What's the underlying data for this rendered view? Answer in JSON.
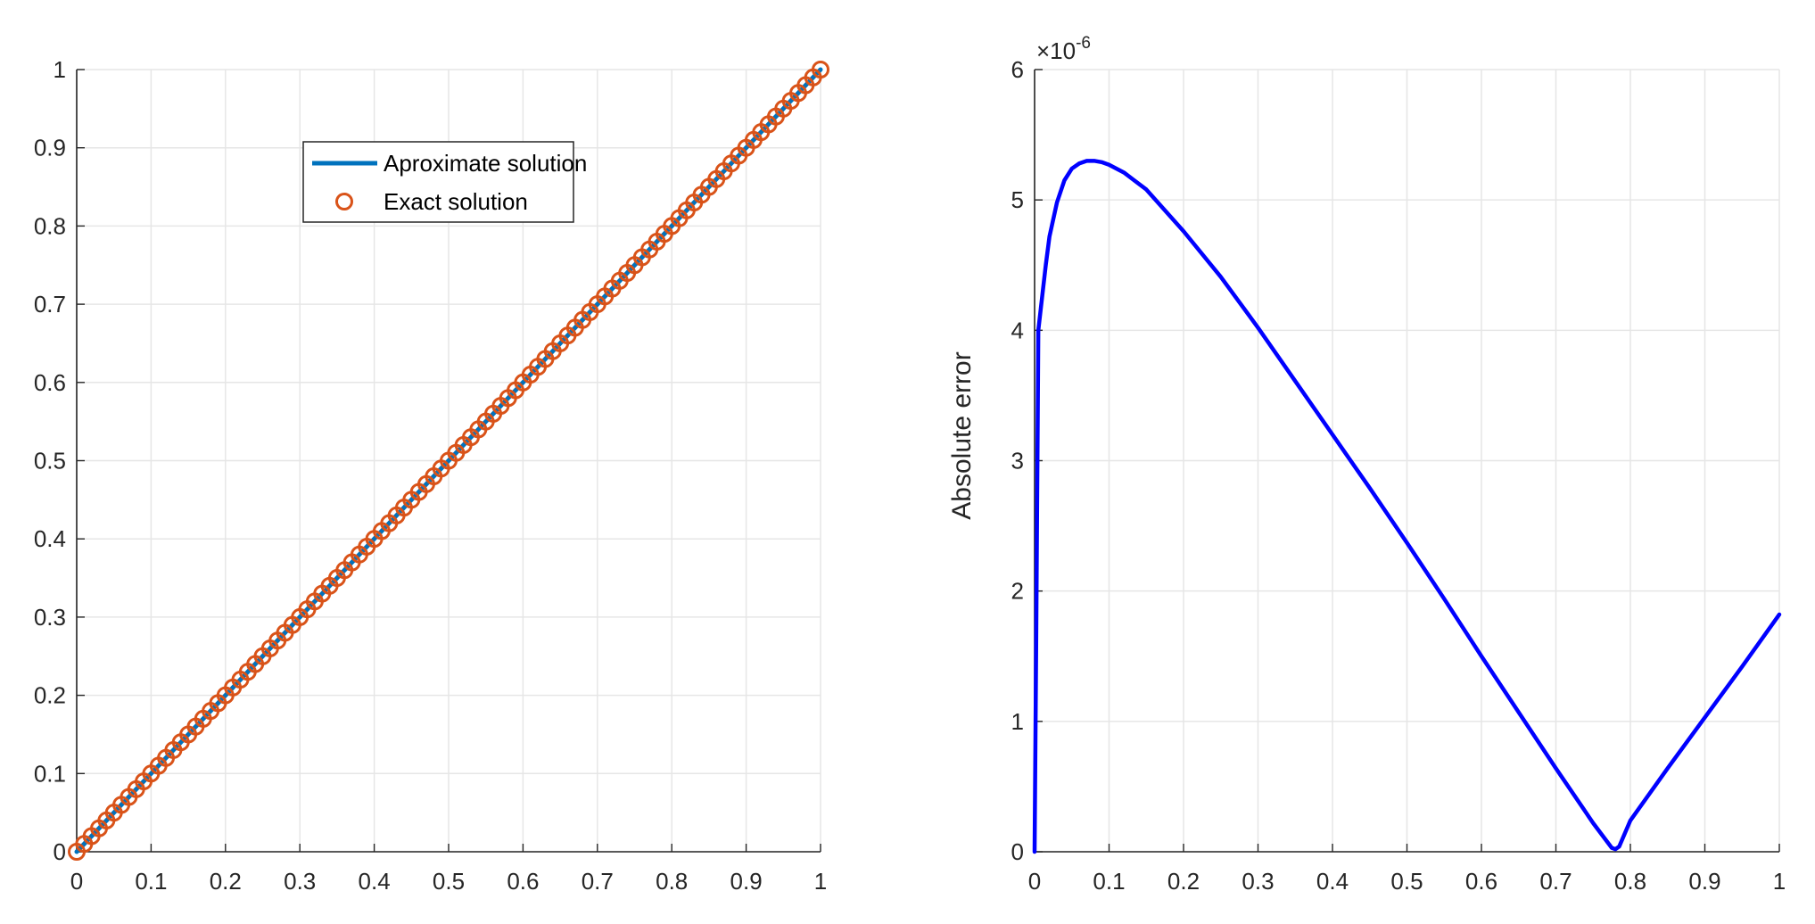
{
  "chart_data": [
    {
      "type": "line",
      "title": "",
      "xlabel": "",
      "ylabel": "",
      "xlim": [
        0,
        1
      ],
      "ylim": [
        0,
        1
      ],
      "grid": true,
      "legend_placement": "upper-center",
      "xticks": [
        "0",
        "0.1",
        "0.2",
        "0.3",
        "0.4",
        "0.5",
        "0.6",
        "0.7",
        "0.8",
        "0.9",
        "1"
      ],
      "yticks": [
        "0",
        "0.1",
        "0.2",
        "0.3",
        "0.4",
        "0.5",
        "0.6",
        "0.7",
        "0.8",
        "0.9",
        "1"
      ],
      "series": [
        {
          "name": "Aproximate solution",
          "style": "line",
          "color": "#0072BD",
          "x": [
            0,
            0.1,
            0.2,
            0.3,
            0.4,
            0.5,
            0.6,
            0.7,
            0.8,
            0.9,
            1
          ],
          "y": [
            0,
            0.1,
            0.2,
            0.3,
            0.4,
            0.5,
            0.6,
            0.7,
            0.8,
            0.9,
            1
          ]
        },
        {
          "name": "Exact solution",
          "style": "markers",
          "marker": "circle",
          "color": "#D95319",
          "x": [
            0,
            0.01,
            0.02,
            0.03,
            0.04,
            0.05,
            0.06,
            0.07,
            0.08,
            0.09,
            0.1,
            0.11,
            0.12,
            0.13,
            0.14,
            0.15,
            0.16,
            0.17,
            0.18,
            0.19,
            0.2,
            0.21,
            0.22,
            0.23,
            0.24,
            0.25,
            0.26,
            0.27,
            0.28,
            0.29,
            0.3,
            0.31,
            0.32,
            0.33,
            0.34,
            0.35,
            0.36,
            0.37,
            0.38,
            0.39,
            0.4,
            0.41,
            0.42,
            0.43,
            0.44,
            0.45,
            0.46,
            0.47,
            0.48,
            0.49,
            0.5,
            0.51,
            0.52,
            0.53,
            0.54,
            0.55,
            0.56,
            0.57,
            0.58,
            0.59,
            0.6,
            0.61,
            0.62,
            0.63,
            0.64,
            0.65,
            0.66,
            0.67,
            0.68,
            0.69,
            0.7,
            0.71,
            0.72,
            0.73,
            0.74,
            0.75,
            0.76,
            0.77,
            0.78,
            0.79,
            0.8,
            0.81,
            0.82,
            0.83,
            0.84,
            0.85,
            0.86,
            0.87,
            0.88,
            0.89,
            0.9,
            0.91,
            0.92,
            0.93,
            0.94,
            0.95,
            0.96,
            0.97,
            0.98,
            0.99,
            1
          ],
          "y": [
            0,
            0.01,
            0.02,
            0.03,
            0.04,
            0.05,
            0.06,
            0.07,
            0.08,
            0.09,
            0.1,
            0.11,
            0.12,
            0.13,
            0.14,
            0.15,
            0.16,
            0.17,
            0.18,
            0.19,
            0.2,
            0.21,
            0.22,
            0.23,
            0.24,
            0.25,
            0.26,
            0.27,
            0.28,
            0.29,
            0.3,
            0.31,
            0.32,
            0.33,
            0.34,
            0.35,
            0.36,
            0.37,
            0.38,
            0.39,
            0.4,
            0.41,
            0.42,
            0.43,
            0.44,
            0.45,
            0.46,
            0.47,
            0.48,
            0.49,
            0.5,
            0.51,
            0.52,
            0.53,
            0.54,
            0.55,
            0.56,
            0.57,
            0.58,
            0.59,
            0.6,
            0.61,
            0.62,
            0.63,
            0.64,
            0.65,
            0.66,
            0.67,
            0.68,
            0.69,
            0.7,
            0.71,
            0.72,
            0.73,
            0.74,
            0.75,
            0.76,
            0.77,
            0.78,
            0.79,
            0.8,
            0.81,
            0.82,
            0.83,
            0.84,
            0.85,
            0.86,
            0.87,
            0.88,
            0.89,
            0.9,
            0.91,
            0.92,
            0.93,
            0.94,
            0.95,
            0.96,
            0.97,
            0.98,
            0.99,
            1
          ]
        }
      ]
    },
    {
      "type": "line",
      "title": "",
      "xlabel": "",
      "ylabel": "Absolute error",
      "xlim": [
        0,
        1
      ],
      "ylim": [
        0,
        6
      ],
      "y_exponent_label": "×10",
      "y_exponent": "-6",
      "grid": true,
      "xticks": [
        "0",
        "0.1",
        "0.2",
        "0.3",
        "0.4",
        "0.5",
        "0.6",
        "0.7",
        "0.8",
        "0.9",
        "1"
      ],
      "yticks": [
        "0",
        "1",
        "2",
        "3",
        "4",
        "5",
        "6"
      ],
      "series": [
        {
          "style": "line",
          "color": "#0000FF",
          "x": [
            0,
            0.002,
            0.005,
            0.01,
            0.015,
            0.02,
            0.03,
            0.04,
            0.05,
            0.06,
            0.07,
            0.075,
            0.08,
            0.09,
            0.1,
            0.12,
            0.15,
            0.2,
            0.25,
            0.3,
            0.35,
            0.4,
            0.45,
            0.5,
            0.55,
            0.6,
            0.65,
            0.7,
            0.75,
            0.775,
            0.78,
            0.785,
            0.8,
            0.85,
            0.9,
            0.95,
            1
          ],
          "y": [
            0,
            1.5,
            4.0,
            4.25,
            4.5,
            4.72,
            4.98,
            5.15,
            5.24,
            5.28,
            5.3,
            5.3,
            5.3,
            5.29,
            5.27,
            5.21,
            5.08,
            4.76,
            4.41,
            4.02,
            3.61,
            3.2,
            2.79,
            2.37,
            1.94,
            1.5,
            1.07,
            0.64,
            0.22,
            0.03,
            0.02,
            0.04,
            0.24,
            0.64,
            1.03,
            1.42,
            1.82
          ]
        }
      ]
    }
  ]
}
